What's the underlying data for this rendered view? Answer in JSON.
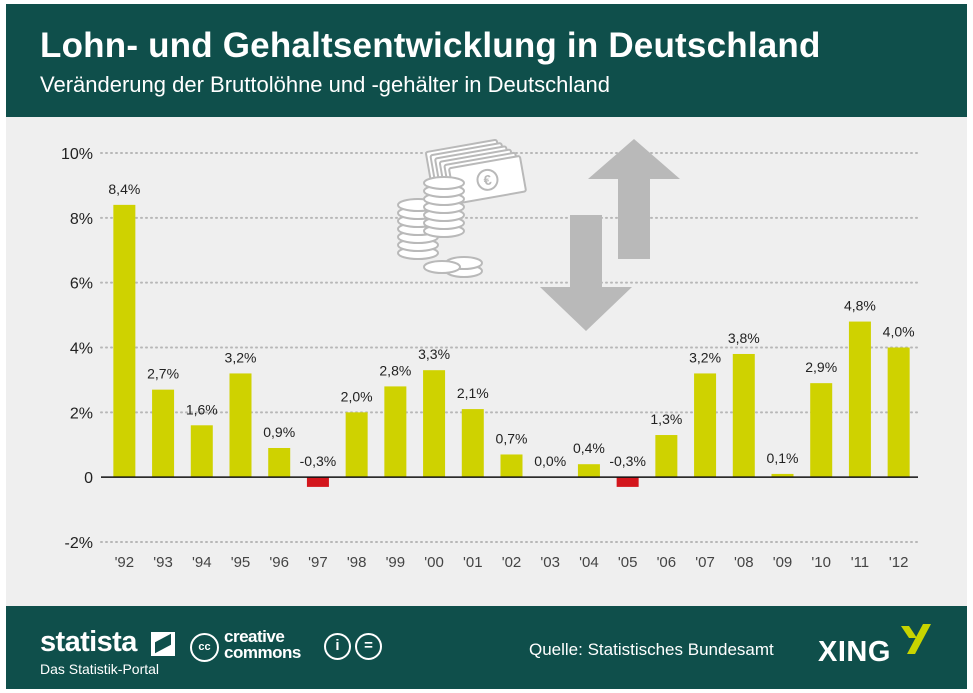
{
  "header": {
    "title": "Lohn- und Gehaltsentwicklung in Deutschland",
    "subtitle": "Veränderung der Bruttolöhne und -gehälter in Deutschland"
  },
  "chart_data": {
    "type": "bar",
    "categories": [
      "'92",
      "'93",
      "'94",
      "'95",
      "'96",
      "'97",
      "'98",
      "'99",
      "'00",
      "'01",
      "'02",
      "'03",
      "'04",
      "'05",
      "'06",
      "'07",
      "'08",
      "'09",
      "'10",
      "'11",
      "'12"
    ],
    "values": [
      8.4,
      2.7,
      1.6,
      3.2,
      0.9,
      -0.3,
      2.0,
      2.8,
      3.3,
      2.1,
      0.7,
      0.0,
      0.4,
      -0.3,
      1.3,
      3.2,
      3.8,
      0.1,
      2.9,
      4.8,
      4.0
    ],
    "data_labels": [
      "8,4%",
      "2,7%",
      "1,6%",
      "3,2%",
      "0,9%",
      "-0,3%",
      "2,0%",
      "2,8%",
      "3,3%",
      "2,1%",
      "0,7%",
      "0,0%",
      "0,4%",
      "-0,3%",
      "1,3%",
      "3,2%",
      "3,8%",
      "0,1%",
      "2,9%",
      "4,8%",
      "4,0%"
    ],
    "yticks": [
      10,
      8,
      6,
      4,
      2,
      0,
      -2
    ],
    "ytick_labels": [
      "10%",
      "8%",
      "6%",
      "4%",
      "2%",
      "0",
      "-2%"
    ],
    "ylim": [
      -2,
      10
    ],
    "xlabel": "",
    "ylabel": "",
    "grid": "dotted horizontal",
    "colors": {
      "positive": "#cfd200",
      "negative": "#d3161c",
      "grid": "#b7b7b7",
      "axis": "#111111",
      "icon": "#b9b9b9"
    }
  },
  "footer": {
    "brand": "statista",
    "brand_sub": "Das Statistik-Portal",
    "cc_symbol": "cc",
    "cc_line1": "creative",
    "cc_line2": "commons",
    "by_symbol": "i",
    "nd_symbol": "=",
    "source": "Quelle: Statistisches Bundesamt",
    "partner": "XING"
  }
}
